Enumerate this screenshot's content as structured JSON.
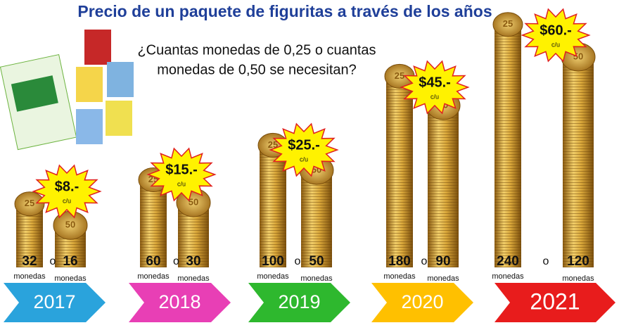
{
  "title": "Precio de un paquete de figuritas a través de los años",
  "question": [
    "¿Cuantas monedas de 0,25 o cuantas",
    "monedas de 0,50 se necesitan?"
  ],
  "coin_word": "monedas",
  "or_word": "o",
  "unit": "c/u",
  "coin_faces": [
    "25",
    "50"
  ],
  "years": [
    {
      "year": "2017",
      "price": "$8.-",
      "quarters": 32,
      "halves": 16
    },
    {
      "year": "2018",
      "price": "$15.-",
      "quarters": 60,
      "halves": 30
    },
    {
      "year": "2019",
      "price": "$25.-",
      "quarters": 100,
      "halves": 50
    },
    {
      "year": "2020",
      "price": "$45.-",
      "quarters": 180,
      "halves": 90
    },
    {
      "year": "2021",
      "price": "$60.-",
      "quarters": 240,
      "halves": 120
    }
  ]
}
